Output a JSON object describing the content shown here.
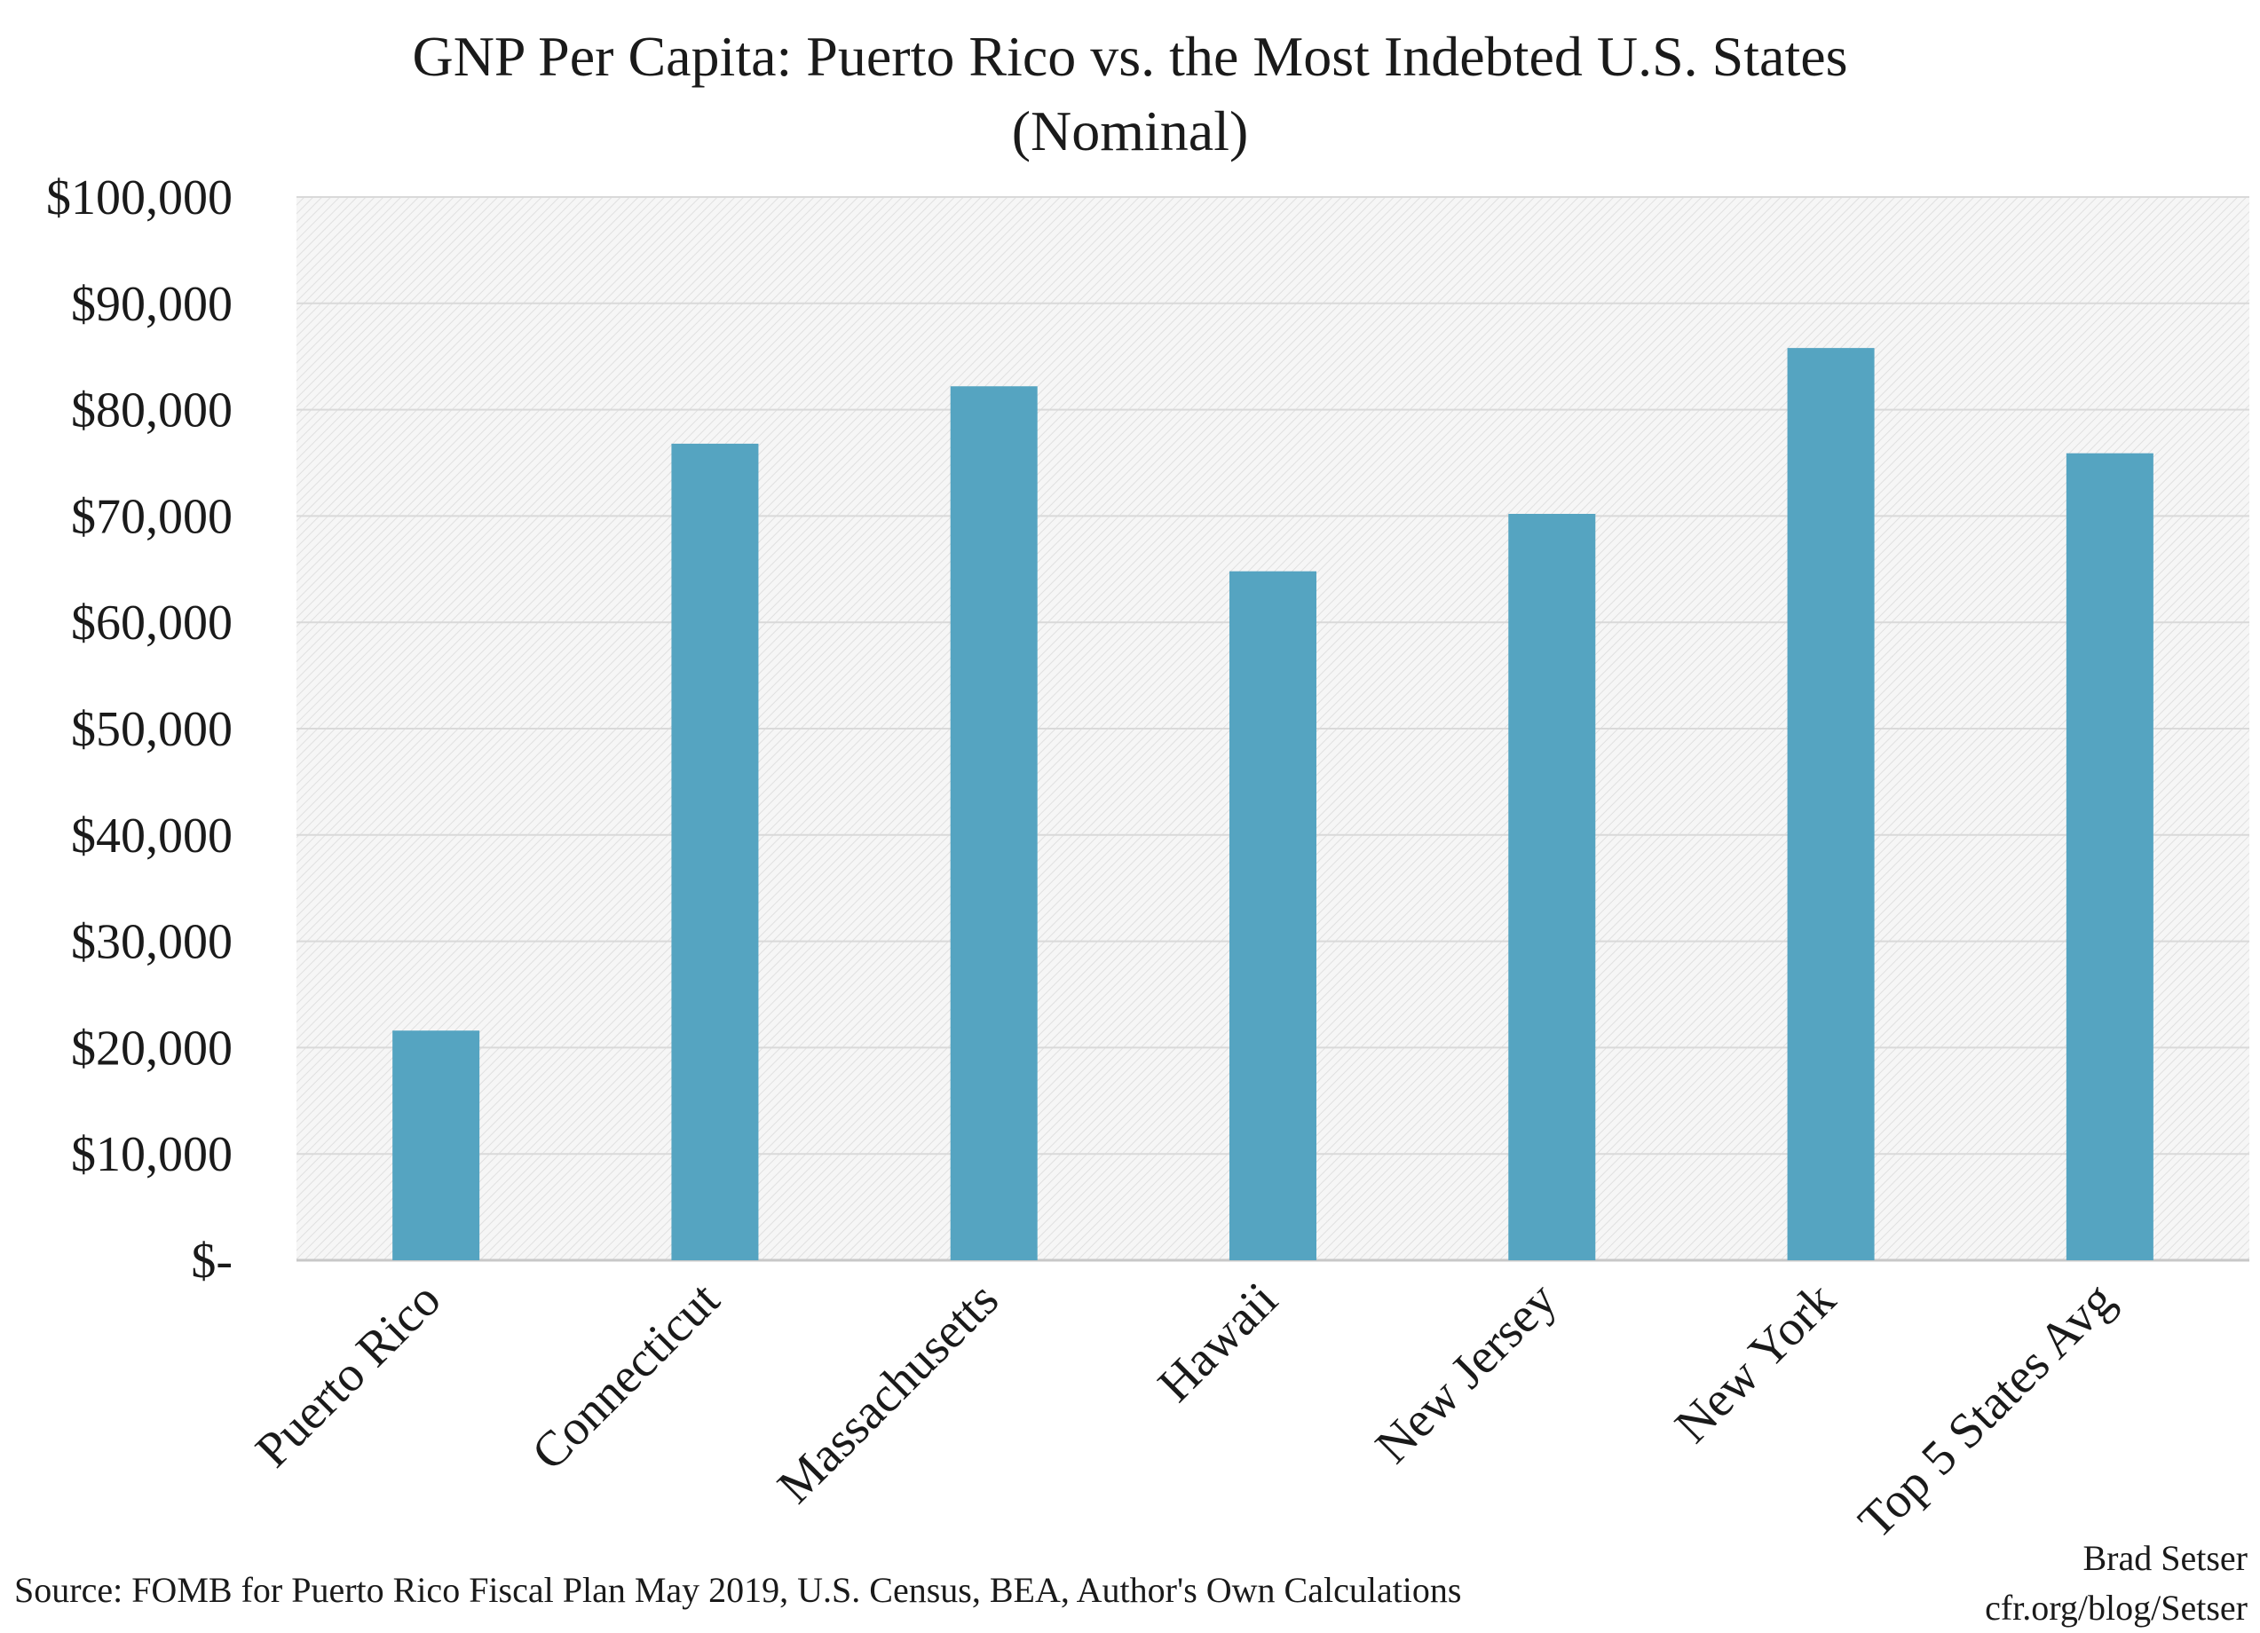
{
  "chart_data": {
    "type": "bar",
    "title": "GNP Per Capita: Puerto Rico vs. the Most Indebted U.S. States",
    "subtitle": "(Nominal)",
    "categories": [
      "Puerto Rico",
      "Connecticut",
      "Massachusetts",
      "Hawaii",
      "New Jersey",
      "New York",
      "Top 5 States Avg"
    ],
    "values": [
      21600,
      76800,
      82200,
      64800,
      70200,
      85800,
      75900
    ],
    "ylim": [
      0,
      100000
    ],
    "yticks": [
      0,
      10000,
      20000,
      30000,
      40000,
      50000,
      60000,
      70000,
      80000,
      90000,
      100000
    ],
    "ytick_labels": [
      "$-",
      "$10,000",
      "$20,000",
      "$30,000",
      "$40,000",
      "$50,000",
      "$60,000",
      "$70,000",
      "$80,000",
      "$90,000",
      "$100,000"
    ],
    "xlabel": "",
    "ylabel": "",
    "grid": true,
    "bar_color": "#55a4c1"
  },
  "source": "Source: FOMB for Puerto Rico Fiscal Plan May 2019, U.S. Census, BEA, Author's Own Calculations",
  "credit": {
    "author": "Brad Setser",
    "site": "cfr.org/blog/Setser"
  }
}
